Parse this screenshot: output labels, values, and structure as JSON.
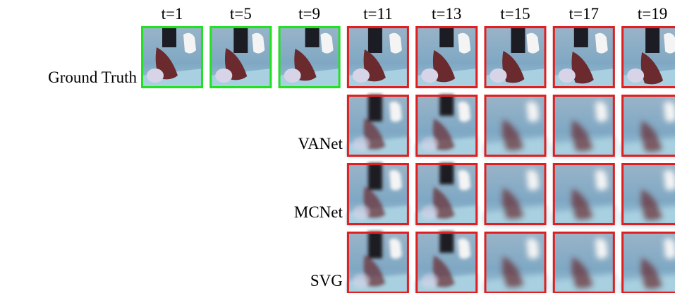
{
  "columns": [
    "t=1",
    "t=5",
    "t=9",
    "t=11",
    "t=13",
    "t=15",
    "t=17",
    "t=19"
  ],
  "rows": [
    {
      "label": "Ground Truth"
    },
    {
      "label": "VANet"
    },
    {
      "label": "MCNet"
    },
    {
      "label": "SVG"
    }
  ]
}
